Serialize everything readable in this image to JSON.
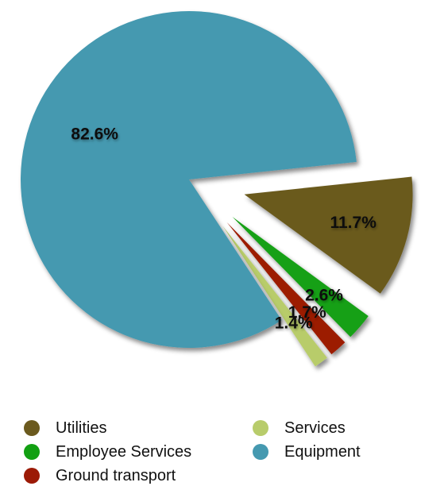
{
  "chart_data": {
    "type": "pie",
    "title": "",
    "categories": [
      "Utilities",
      "Employee Services",
      "Ground transport",
      "Services",
      "Equipment"
    ],
    "values": [
      11.7,
      2.6,
      1.7,
      1.4,
      82.6
    ],
    "labels": [
      "11.7%",
      "2.6%",
      "1.7%",
      "1.4%",
      "82.6%"
    ],
    "exploded": [
      true,
      true,
      true,
      true,
      false
    ],
    "colors": {
      "Utilities": "#6b5a1e",
      "Employee Services": "#12a012",
      "Ground transport": "#9c1a06",
      "Services": "#b8cc6b",
      "Equipment": "#4599b0"
    },
    "legend": {
      "placement": "bottom",
      "order": [
        "Utilities",
        "Services",
        "Employee Services",
        "Equipment",
        "Ground transport"
      ]
    }
  }
}
